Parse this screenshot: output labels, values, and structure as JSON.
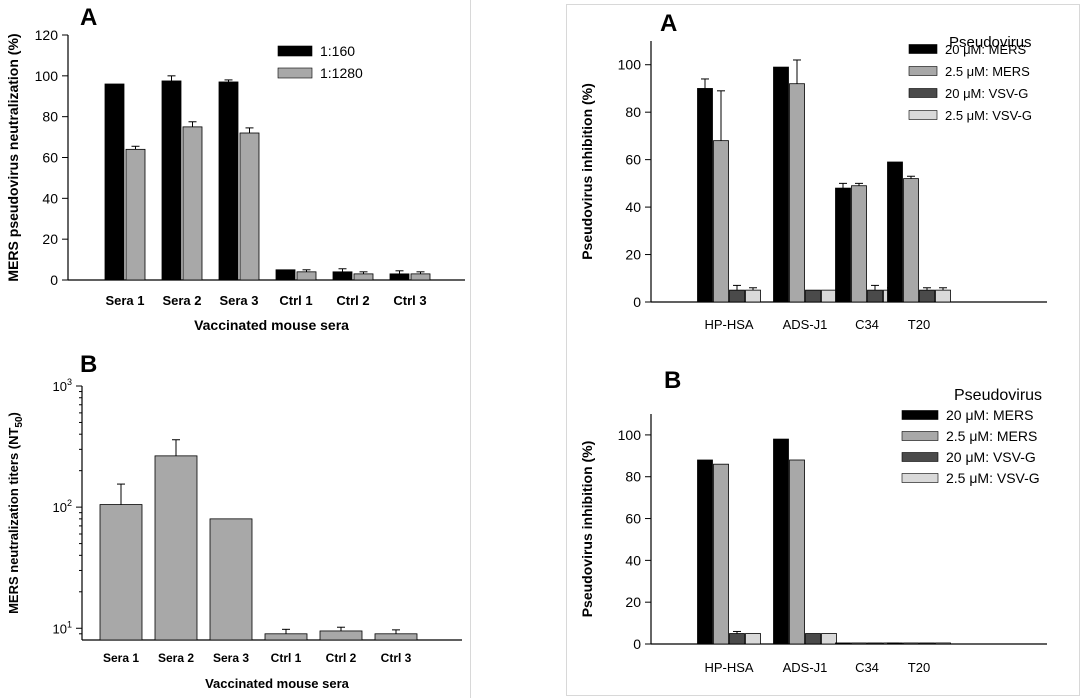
{
  "colors": {
    "black": "#000000",
    "gray": "#a8a8a8",
    "dark_gray": "#4a4a4a",
    "light_gray": "#d9d9d9"
  },
  "chart_data": [
    {
      "id": "left-A",
      "panel_letter": "A",
      "type": "bar",
      "ylabel": "MERS pseudovirus neutralization (%)",
      "xlabel": "Vaccinated mouse sera",
      "ylim": [
        0,
        120
      ],
      "yticks": [
        0,
        20,
        40,
        60,
        80,
        100,
        120
      ],
      "categories": [
        "Sera 1",
        "Sera 2",
        "Sera 3",
        "Ctrl 1",
        "Ctrl 2",
        "Ctrl 3"
      ],
      "legend_title": "",
      "legend_position": "top-right",
      "series": [
        {
          "name": "1:160",
          "color": "#000000",
          "values": [
            96,
            97.5,
            97,
            5,
            4,
            3
          ],
          "errors": [
            0,
            2.5,
            1,
            0,
            1.5,
            1.5
          ]
        },
        {
          "name": "1:1280",
          "color": "#a8a8a8",
          "values": [
            64,
            75,
            72,
            4,
            3,
            3
          ],
          "errors": [
            1.5,
            2.5,
            2.5,
            1,
            1,
            1
          ]
        }
      ]
    },
    {
      "id": "left-B",
      "panel_letter": "B",
      "type": "bar",
      "log_scale": true,
      "ylabel": "MERS neutralization titers (NT",
      "ylabel_sub": "50",
      "ylabel_end": ")",
      "xlabel": "Vaccinated mouse sera",
      "ylim": [
        8,
        1000
      ],
      "yticks": [
        {
          "value": 10,
          "base": "10",
          "exp": "1"
        },
        {
          "value": 100,
          "base": "10",
          "exp": "2"
        },
        {
          "value": 1000,
          "base": "10",
          "exp": "3"
        }
      ],
      "categories": [
        "Sera 1",
        "Sera 2",
        "Sera 3",
        "Ctrl 1",
        "Ctrl 2",
        "Ctrl 3"
      ],
      "series": [
        {
          "name": "",
          "color": "#a8a8a8",
          "values": [
            105,
            265,
            80,
            9,
            9.5,
            9
          ],
          "errors": [
            50,
            95,
            0,
            0.8,
            0.7,
            0.7
          ]
        }
      ]
    },
    {
      "id": "right-A",
      "panel_letter": "A",
      "type": "bar",
      "ylabel": "Pseudovirus inhibition (%)",
      "xlabel": "",
      "ylim": [
        0,
        110
      ],
      "yticks": [
        0,
        20,
        40,
        60,
        80,
        100
      ],
      "categories": [
        "HP-HSA",
        "ADS-J1",
        "C34",
        "T20"
      ],
      "legend_title": "Pseudovirus",
      "legend_position": "top-right",
      "series": [
        {
          "name": "20 μM:  MERS",
          "color": "#000000",
          "values": [
            90,
            99,
            48,
            59
          ],
          "errors": [
            4,
            0,
            2,
            0
          ]
        },
        {
          "name": "2.5 μM: MERS",
          "color": "#a8a8a8",
          "values": [
            68,
            92,
            49,
            52
          ],
          "errors": [
            21,
            10,
            1,
            1
          ]
        },
        {
          "name": "20 μM:  VSV-G",
          "color": "#4a4a4a",
          "values": [
            5,
            5,
            5,
            5
          ],
          "errors": [
            2,
            0,
            2,
            1
          ]
        },
        {
          "name": "2.5 μM: VSV-G",
          "color": "#d9d9d9",
          "values": [
            5,
            5,
            5,
            5
          ],
          "errors": [
            1,
            0,
            1,
            1
          ]
        }
      ]
    },
    {
      "id": "right-B",
      "panel_letter": "B",
      "type": "bar",
      "ylabel": "Pseudovirus inhibition (%)",
      "xlabel": "",
      "ylim": [
        0,
        110
      ],
      "yticks": [
        0,
        20,
        40,
        60,
        80,
        100
      ],
      "categories": [
        "HP-HSA",
        "ADS-J1",
        "C34",
        "T20"
      ],
      "legend_title": "Pseudovirus",
      "legend_position": "top-right",
      "series": [
        {
          "name": "20 μM:  MERS",
          "color": "#000000",
          "values": [
            88,
            98,
            0.5,
            0.5
          ],
          "errors": [
            0,
            0,
            0,
            0
          ]
        },
        {
          "name": "2.5 μM: MERS",
          "color": "#a8a8a8",
          "values": [
            86,
            88,
            0.5,
            0.5
          ],
          "errors": [
            0,
            0,
            0,
            0
          ]
        },
        {
          "name": "20 μM:  VSV-G",
          "color": "#4a4a4a",
          "values": [
            5,
            5,
            0.5,
            0.5
          ],
          "errors": [
            1,
            0,
            0,
            0
          ]
        },
        {
          "name": "2.5 μM: VSV-G",
          "color": "#d9d9d9",
          "values": [
            5,
            5,
            0.5,
            0.5
          ],
          "errors": [
            0,
            0,
            0,
            0
          ]
        }
      ]
    }
  ]
}
